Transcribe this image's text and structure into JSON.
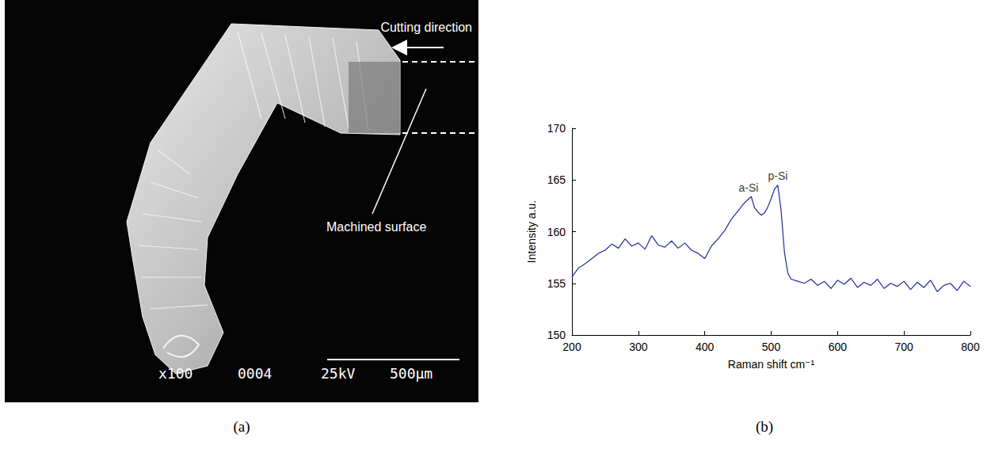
{
  "figure": {
    "panel_labels": [
      "(a)",
      "(b)"
    ]
  },
  "sem_image": {
    "annotations": [
      "Cutting direction",
      "Machined surface"
    ],
    "info_bar": [
      "x100",
      "0004",
      "25kV",
      "500μm"
    ]
  },
  "chart_data": {
    "type": "line",
    "x_label": "Raman shift cm⁻¹",
    "y_label": "Intensity a.u.",
    "color": "#1c2e9e",
    "marker": "none",
    "line_style": "solid",
    "grid": false,
    "xlim": [
      200,
      800
    ],
    "xticks": [
      200,
      300,
      400,
      500,
      600,
      700,
      800
    ],
    "ylim": [
      150,
      170
    ],
    "yticks": [
      150,
      155,
      160,
      165,
      170
    ],
    "x": [
      200,
      210,
      220,
      230,
      240,
      250,
      260,
      270,
      280,
      290,
      300,
      310,
      320,
      330,
      340,
      350,
      360,
      370,
      380,
      390,
      400,
      410,
      420,
      430,
      440,
      450,
      460,
      465,
      470,
      475,
      480,
      485,
      490,
      495,
      500,
      505,
      510,
      515,
      520,
      525,
      530,
      540,
      550,
      560,
      570,
      580,
      590,
      600,
      610,
      620,
      630,
      640,
      650,
      660,
      670,
      680,
      690,
      700,
      710,
      720,
      730,
      740,
      750,
      760,
      770,
      780,
      790,
      800
    ],
    "values": [
      155.6,
      156.5,
      156.9,
      157.4,
      157.9,
      158.2,
      158.8,
      158.4,
      159.3,
      158.6,
      158.9,
      158.3,
      159.6,
      158.7,
      158.5,
      159.1,
      158.4,
      158.9,
      158.2,
      157.9,
      157.4,
      158.6,
      159.3,
      160.1,
      161.2,
      162.0,
      162.8,
      163.1,
      163.4,
      162.3,
      161.9,
      161.6,
      161.8,
      162.4,
      163.2,
      164.1,
      164.5,
      162.0,
      158.0,
      156.0,
      155.4,
      155.2,
      155.0,
      155.4,
      154.8,
      155.2,
      154.5,
      155.3,
      154.9,
      155.5,
      154.6,
      155.1,
      154.8,
      155.4,
      154.5,
      155.0,
      154.7,
      155.2,
      154.4,
      155.1,
      154.6,
      155.3,
      154.2,
      154.8,
      155.0,
      154.3,
      155.2,
      154.7
    ],
    "annotations": [
      {
        "text": "a-Si",
        "x": 466,
        "y": 163.6
      },
      {
        "text": "p-Si",
        "x": 510,
        "y": 164.7
      }
    ]
  }
}
